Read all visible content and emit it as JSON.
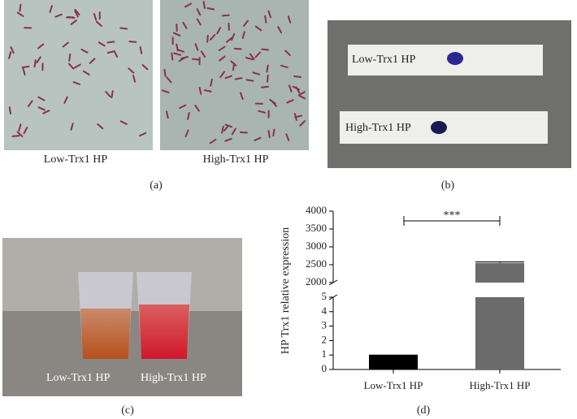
{
  "panels": {
    "a": {
      "label": "(a)",
      "captions": [
        "Low-Trx1 HP",
        "High-Trx1 HP"
      ]
    },
    "b": {
      "label": "(b)",
      "strips": [
        "Low-Trx1 HP",
        "High-Trx1 HP"
      ]
    },
    "c": {
      "label": "(c)",
      "cups": [
        "Low-Trx1 HP",
        "High-Trx1 HP"
      ]
    }
  },
  "chart_data": {
    "type": "bar",
    "panel_label": "(d)",
    "ylabel": "HP Trx1 relative expression",
    "categories": [
      "Low-Trx1 HP",
      "High-Trx1 HP"
    ],
    "values": [
      1,
      2550
    ],
    "errors": [
      0,
      30
    ],
    "colors": [
      "#000000",
      "#6b6b6b"
    ],
    "ylim": [
      0,
      4000
    ],
    "yticks": [
      0,
      1,
      2,
      3,
      4,
      5,
      2000,
      2500,
      3000,
      3500,
      4000
    ],
    "axis_break": [
      5,
      2000
    ],
    "significance": "***"
  }
}
